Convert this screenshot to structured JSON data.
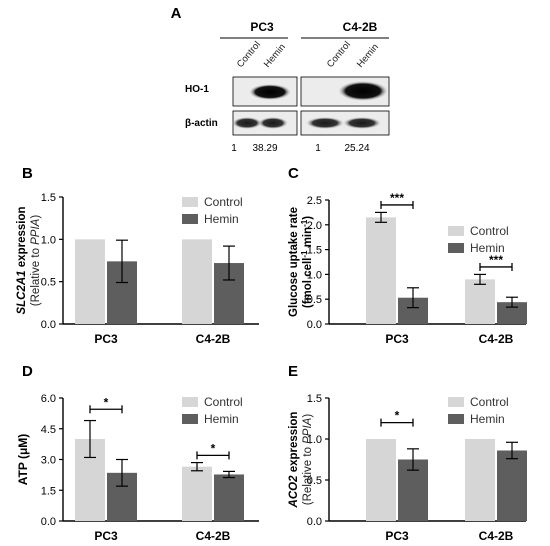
{
  "blot": {
    "panel_label": "A",
    "cell_lines": [
      "PC3",
      "C4-2B"
    ],
    "lanes": [
      "Control",
      "Hemin"
    ],
    "rows": [
      "HO-1",
      "β-actin"
    ],
    "quantification": [
      {
        "cell_line": "PC3",
        "values": [
          "1",
          "38.29"
        ]
      },
      {
        "cell_line": "C4-2B",
        "values": [
          "1",
          "25.24"
        ]
      }
    ]
  },
  "legend": [
    "Control",
    "Hemin"
  ],
  "colors": {
    "control": "#d6d6d6",
    "hemin": "#5e5e5e",
    "axis": "#000000"
  },
  "chart_data": [
    {
      "panel": "B",
      "type": "bar",
      "categories": [
        "PC3",
        "C4-2B"
      ],
      "ylabel_italic": "SLC2A1",
      "ylabel_rest": " expression",
      "ylabel2_prefix": "(Relative to ",
      "ylabel2_italic": "PPIA",
      "ylabel2_suffix": ")",
      "ylim": [
        0,
        1.5
      ],
      "yticks": [
        0,
        0.5,
        1.0,
        1.5
      ],
      "ytick_labels": [
        "0.0",
        "0.5",
        "1.0",
        "1.5"
      ],
      "series": [
        {
          "name": "Control",
          "values": [
            1.0,
            1.0
          ],
          "errors": [
            0,
            0
          ]
        },
        {
          "name": "Hemin",
          "values": [
            0.74,
            0.72
          ],
          "errors": [
            0.25,
            0.2
          ]
        }
      ],
      "significance": [],
      "legend_position": "top-right"
    },
    {
      "panel": "C",
      "type": "bar",
      "categories": [
        "PC3",
        "C4-2B"
      ],
      "ylabel_line1": "Glucose uptake rate",
      "ylabel_line2": "(fmol cell",
      "ylabel_sup1": "-1",
      "ylabel_mid": " min",
      "ylabel_sup2": "-1",
      "ylabel_end": ")",
      "ylim": [
        0,
        2.5
      ],
      "yticks": [
        0,
        0.5,
        1.0,
        1.5,
        2.0,
        2.5
      ],
      "ytick_labels": [
        "0.0",
        "0.5",
        "1.0",
        "1.5",
        "2.0",
        "2.5"
      ],
      "series": [
        {
          "name": "Control",
          "values": [
            2.15,
            0.9
          ],
          "errors": [
            0.1,
            0.1
          ]
        },
        {
          "name": "Hemin",
          "values": [
            0.53,
            0.44
          ],
          "errors": [
            0.2,
            0.1
          ]
        }
      ],
      "significance": [
        {
          "category_index": 0,
          "label": "***",
          "y": 2.4
        },
        {
          "category_index": 1,
          "label": "***",
          "y": 1.15
        }
      ],
      "legend_position": "top-right"
    },
    {
      "panel": "D",
      "type": "bar",
      "categories": [
        "PC3",
        "C4-2B"
      ],
      "ylabel": "ATP (μM)",
      "ylim": [
        0,
        6.0
      ],
      "yticks": [
        0,
        1.5,
        3.0,
        4.5,
        6.0
      ],
      "ytick_labels": [
        "0.0",
        "1.5",
        "3.0",
        "4.5",
        "6.0"
      ],
      "series": [
        {
          "name": "Control",
          "values": [
            4.0,
            2.65
          ],
          "errors": [
            0.9,
            0.2
          ]
        },
        {
          "name": "Hemin",
          "values": [
            2.35,
            2.27
          ],
          "errors": [
            0.65,
            0.15
          ]
        }
      ],
      "significance": [
        {
          "category_index": 0,
          "label": "*",
          "y": 5.45
        },
        {
          "category_index": 1,
          "label": "*",
          "y": 3.2
        }
      ],
      "legend_position": "top-right"
    },
    {
      "panel": "E",
      "type": "bar",
      "categories": [
        "PC3",
        "C4-2B"
      ],
      "ylabel_italic": "ACO2",
      "ylabel_rest": " expression",
      "ylabel2_prefix": "(Relative to ",
      "ylabel2_italic": "PPIA",
      "ylabel2_suffix": ")",
      "ylim": [
        0,
        1.5
      ],
      "yticks": [
        0,
        0.5,
        1.0,
        1.5
      ],
      "ytick_labels": [
        "0.0",
        "0.5",
        "1.0",
        "1.5"
      ],
      "series": [
        {
          "name": "Control",
          "values": [
            1.0,
            1.0
          ],
          "errors": [
            0,
            0
          ]
        },
        {
          "name": "Hemin",
          "values": [
            0.75,
            0.86
          ],
          "errors": [
            0.13,
            0.1
          ]
        }
      ],
      "significance": [
        {
          "category_index": 0,
          "label": "*",
          "y": 1.2
        }
      ],
      "legend_position": "top-right"
    }
  ]
}
